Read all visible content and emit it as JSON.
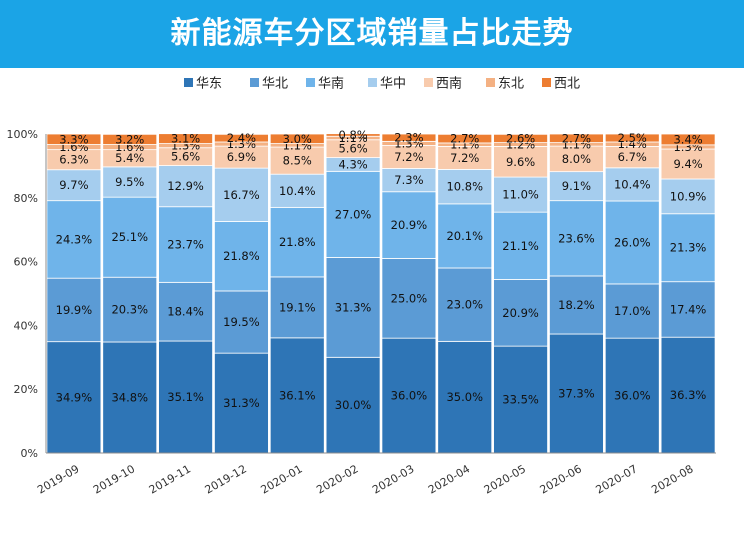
{
  "chart_data": {
    "type": "bar",
    "stacked": true,
    "title": "新能源车分区域销量占比走势",
    "categories": [
      "2019-09",
      "2019-10",
      "2019-11",
      "2019-12",
      "2020-01",
      "2020-02",
      "2020-03",
      "2020-04",
      "2020-05",
      "2020-06",
      "2020-07",
      "2020-08"
    ],
    "series": [
      {
        "name": "华东",
        "color": "#2e75b6",
        "values": [
          34.9,
          34.8,
          35.1,
          31.3,
          36.1,
          30.0,
          36.0,
          35.0,
          33.5,
          37.3,
          36.0,
          36.3
        ]
      },
      {
        "name": "华北",
        "color": "#5b9bd5",
        "values": [
          19.9,
          20.3,
          18.4,
          19.5,
          19.1,
          31.3,
          25.0,
          23.0,
          20.9,
          18.2,
          17.0,
          17.4
        ]
      },
      {
        "name": "华南",
        "color": "#6fb4ea",
        "values": [
          24.3,
          25.1,
          23.7,
          21.8,
          21.8,
          27.0,
          20.9,
          20.1,
          21.1,
          23.6,
          26.0,
          21.3
        ]
      },
      {
        "name": "华中",
        "color": "#a5cdee",
        "values": [
          9.7,
          9.5,
          12.9,
          16.7,
          10.4,
          4.3,
          7.3,
          10.8,
          11.0,
          9.1,
          10.4,
          10.9
        ]
      },
      {
        "name": "西南",
        "color": "#f8cbad",
        "values": [
          6.3,
          5.4,
          5.6,
          6.9,
          8.5,
          5.6,
          7.2,
          7.2,
          9.6,
          8.0,
          6.7,
          9.4
        ]
      },
      {
        "name": "东北",
        "color": "#f4b183",
        "values": [
          1.6,
          1.6,
          1.3,
          1.3,
          1.1,
          1.1,
          1.3,
          1.1,
          1.2,
          1.1,
          1.4,
          1.3
        ]
      },
      {
        "name": "西北",
        "color": "#ed7d31",
        "values": [
          3.3,
          3.2,
          3.1,
          2.4,
          3.0,
          0.8,
          2.3,
          2.7,
          2.6,
          2.7,
          2.5,
          3.4
        ]
      }
    ],
    "yticks": [
      "0%",
      "20%",
      "40%",
      "60%",
      "80%",
      "100%"
    ],
    "ylim": [
      0,
      100
    ],
    "legend_position": "top",
    "grid": false
  }
}
